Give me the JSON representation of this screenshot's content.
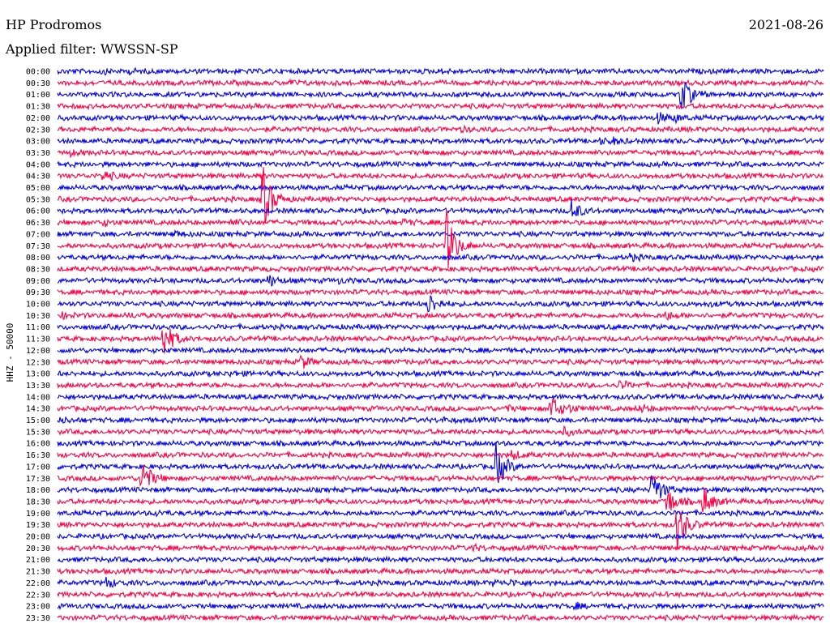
{
  "header": {
    "station": "HP Prodromos",
    "date": "2021-08-26",
    "filter": "Applied filter: WWSSN-SP",
    "axis_label": "HHZ - 50000"
  },
  "colors": {
    "trace_a": "#0000ee",
    "trace_b": "#ff0044"
  },
  "chart_data": {
    "type": "line",
    "title": "HP Prodromos",
    "subtitle": "Applied filter: WWSSN-SP",
    "ylabel": "HHZ - 50000",
    "y_tick_labels": [
      "00:00",
      "00:30",
      "01:00",
      "01:30",
      "02:00",
      "02:30",
      "03:00",
      "03:30",
      "04:00",
      "04:30",
      "05:00",
      "05:30",
      "06:00",
      "06:30",
      "07:00",
      "07:30",
      "08:00",
      "08:30",
      "09:00",
      "09:30",
      "10:00",
      "10:30",
      "11:00",
      "11:30",
      "12:00",
      "12:30",
      "13:00",
      "13:30",
      "14:00",
      "14:30",
      "15:00",
      "15:30",
      "16:00",
      "16:30",
      "17:00",
      "17:30",
      "18:00",
      "18:30",
      "19:00",
      "19:30",
      "20:00",
      "20:30",
      "21:00",
      "21:30",
      "22:00",
      "22:30",
      "23:00",
      "23:30"
    ],
    "trace_minutes": 30,
    "grid": false,
    "events": [
      {
        "row": "00:00",
        "minute": 3.4,
        "amp": 0.4
      },
      {
        "row": "00:00",
        "minute": 5.6,
        "amp": 0.4
      },
      {
        "row": "00:00",
        "minute": 30,
        "amp": 0.3
      },
      {
        "row": "00:30",
        "minute": 18.1,
        "amp": 0.4
      },
      {
        "row": "01:00",
        "minute": 48.8,
        "amp": 4.5
      },
      {
        "row": "02:00",
        "minute": 46.9,
        "amp": 1.2
      },
      {
        "row": "02:00",
        "minute": 48.3,
        "amp": 0.6
      },
      {
        "row": "02:30",
        "minute": 31.5,
        "amp": 0.4
      },
      {
        "row": "03:00",
        "minute": 42.5,
        "amp": 0.5
      },
      {
        "row": "03:00",
        "minute": 43.5,
        "amp": 0.5
      },
      {
        "row": "03:30",
        "minute": 0.9,
        "amp": 0.5
      },
      {
        "row": "04:30",
        "minute": 3.5,
        "amp": 1.2
      },
      {
        "row": "05:00",
        "minute": 45.5,
        "amp": 0.5
      },
      {
        "row": "05:30",
        "minute": 15.9,
        "amp": 9.5
      },
      {
        "row": "06:00",
        "minute": 40.2,
        "amp": 2.5
      },
      {
        "row": "06:30",
        "minute": 3.5,
        "amp": 0.6
      },
      {
        "row": "06:30",
        "minute": 13.5,
        "amp": 0.6
      },
      {
        "row": "06:30",
        "minute": 27.0,
        "amp": 0.6
      },
      {
        "row": "07:00",
        "minute": 9.0,
        "amp": 0.6
      },
      {
        "row": "07:30",
        "minute": 30.4,
        "amp": 8.0
      },
      {
        "row": "08:00",
        "minute": 44.8,
        "amp": 0.6
      },
      {
        "row": "09:00",
        "minute": 16.5,
        "amp": 1.2
      },
      {
        "row": "09:00",
        "minute": 22.0,
        "amp": 0.4
      },
      {
        "row": "10:00",
        "minute": 29.0,
        "amp": 2.5
      },
      {
        "row": "10:00",
        "minute": 51.0,
        "amp": 0.4
      },
      {
        "row": "10:30",
        "minute": 0.3,
        "amp": 0.5
      },
      {
        "row": "10:30",
        "minute": 5.4,
        "amp": 0.4
      },
      {
        "row": "10:30",
        "minute": 47.5,
        "amp": 1.0
      },
      {
        "row": "11:30",
        "minute": 8.2,
        "amp": 5.0
      },
      {
        "row": "12:30",
        "minute": 19.0,
        "amp": 1.5
      },
      {
        "row": "13:00",
        "minute": 13.5,
        "amp": 0.4
      },
      {
        "row": "13:30",
        "minute": 44.0,
        "amp": 0.9
      },
      {
        "row": "14:30",
        "minute": 35.0,
        "amp": 0.6
      },
      {
        "row": "14:30",
        "minute": 38.6,
        "amp": 3.0
      },
      {
        "row": "14:30",
        "minute": 40.0,
        "amp": 0.5
      },
      {
        "row": "14:30",
        "minute": 45.5,
        "amp": 0.8
      },
      {
        "row": "15:00",
        "minute": 0.2,
        "amp": 0.5
      },
      {
        "row": "15:00",
        "minute": 30.0,
        "amp": 0.4
      },
      {
        "row": "15:30",
        "minute": 39.6,
        "amp": 0.8
      },
      {
        "row": "16:30",
        "minute": 35.5,
        "amp": 1.0
      },
      {
        "row": "17:00",
        "minute": 34.3,
        "amp": 5.5
      },
      {
        "row": "17:30",
        "minute": 6.5,
        "amp": 5.0
      },
      {
        "row": "18:00",
        "minute": 46.5,
        "amp": 5.0
      },
      {
        "row": "18:30",
        "minute": 47.5,
        "amp": 4.5
      },
      {
        "row": "18:30",
        "minute": 50.5,
        "amp": 3.5
      },
      {
        "row": "19:00",
        "minute": 7.5,
        "amp": 0.5
      },
      {
        "row": "19:30",
        "minute": 48.5,
        "amp": 5.5
      },
      {
        "row": "20:30",
        "minute": 32.5,
        "amp": 0.5
      },
      {
        "row": "22:00",
        "minute": 3.7,
        "amp": 1.2
      },
      {
        "row": "22:00",
        "minute": 34.0,
        "amp": 0.5
      },
      {
        "row": "22:00",
        "minute": 35.5,
        "amp": 0.5
      },
      {
        "row": "23:00",
        "minute": 40.5,
        "amp": 0.5
      }
    ]
  }
}
